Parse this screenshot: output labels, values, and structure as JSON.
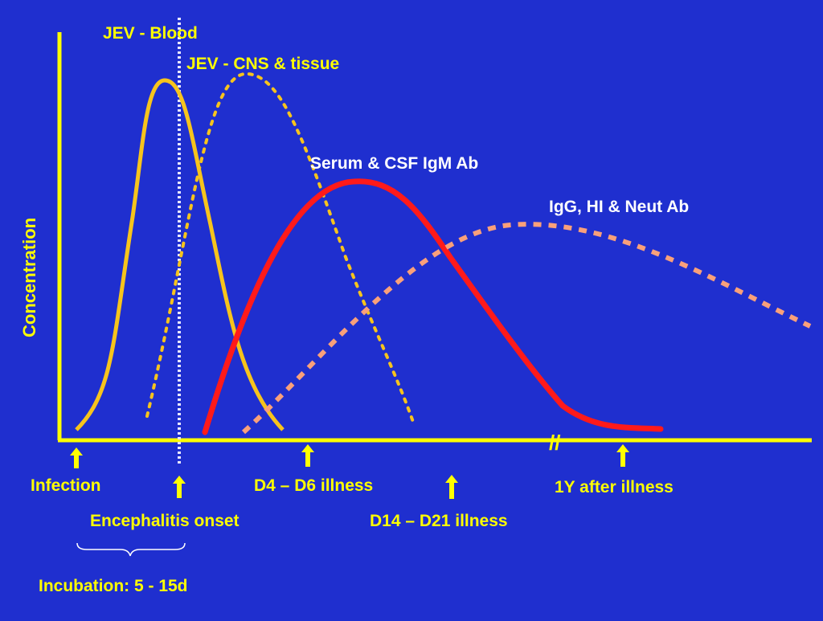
{
  "colors": {
    "background": "#1f2fcf",
    "axis": "#ffff00",
    "blood": "#f7c41c",
    "cns": "#f7c41c",
    "igm": "#ff1a1a",
    "igg": "#f9a07a",
    "onset_line": "#e8e8ff",
    "brace": "#ffffff",
    "labels": "#ffff00",
    "curve_labels": "#ffffff"
  },
  "y_axis_label": "Concentration",
  "curves": {
    "blood": "JEV - Blood",
    "cns": "JEV - CNS & tissue",
    "igm": "Serum & CSF IgM Ab",
    "igg": "IgG, HI & Neut Ab"
  },
  "timepoints": {
    "infection": "Infection",
    "onset": "Encephalitis onset",
    "d4_d6": "D4 – D6 illness",
    "d14_d21": "D14 – D21 illness",
    "one_year": "1Y after illness"
  },
  "incubation": "Incubation: 5 - 15d",
  "axis_break": "//"
}
